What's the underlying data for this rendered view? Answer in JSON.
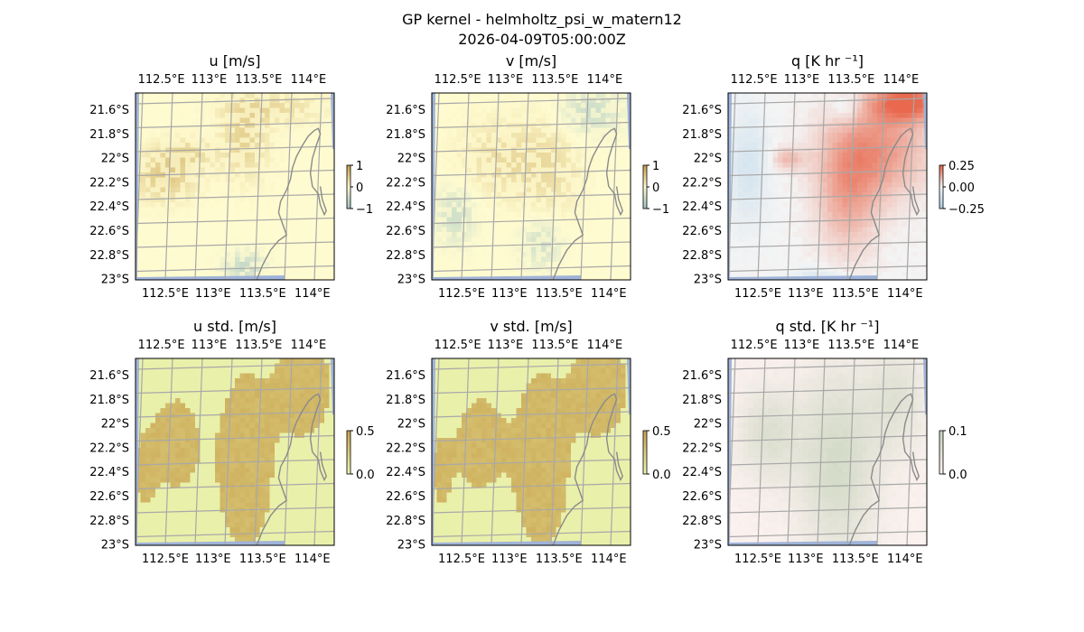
{
  "figure": {
    "title": "GP kernel - helmholtz_psi_w_matern12",
    "subtitle": "2026-04-09T05:00:00Z"
  },
  "colors": {
    "ocean": "#9fb3d9",
    "grid": "#a8a8a8",
    "coast": "#8a8a8a",
    "diverge_pos": "#c8a24a",
    "diverge_mid": "#fffbd0",
    "diverge_neg": "#9fc4c4",
    "std_high": "#c9a44f",
    "std_low": "#ebf5b0",
    "q_pos": "#e8694e",
    "q_mid": "#f4f4f4",
    "q_neg": "#a9cfe8",
    "qstd_low": "#fbf1ef",
    "qstd_high": "#c8d4bc"
  },
  "chart_data": [
    {
      "id": "u",
      "type": "heatmap",
      "title": "u [m/s]",
      "xticks": [
        "112.5°E",
        "113°E",
        "113.5°E",
        "114°E"
      ],
      "yticks": [
        "21.6°S",
        "21.8°S",
        "22°S",
        "22.2°S",
        "22.4°S",
        "22.6°S",
        "22.8°S",
        "23°S"
      ],
      "xlim": [
        112.2,
        114.25
      ],
      "ylim": [
        -23.0,
        -21.45
      ],
      "colorbar": {
        "ticks": [
          "1",
          "0",
          "−1"
        ],
        "range": [
          -1,
          1
        ]
      },
      "cmap": "diverge",
      "field": "u",
      "value_range": [
        -1,
        1
      ]
    },
    {
      "id": "v",
      "type": "heatmap",
      "title": "v [m/s]",
      "xticks": [
        "112.5°E",
        "113°E",
        "113.5°E",
        "114°E"
      ],
      "yticks": [
        "21.6°S",
        "21.8°S",
        "22°S",
        "22.2°S",
        "22.4°S",
        "22.6°S",
        "22.8°S",
        "23°S"
      ],
      "xlim": [
        112.2,
        114.25
      ],
      "ylim": [
        -23.0,
        -21.45
      ],
      "colorbar": {
        "ticks": [
          "1",
          "0",
          "−1"
        ],
        "range": [
          -1,
          1
        ]
      },
      "cmap": "diverge",
      "field": "v",
      "value_range": [
        -1,
        1
      ]
    },
    {
      "id": "q",
      "type": "heatmap",
      "title": "q [K hr ⁻¹]",
      "xticks": [
        "112.5°E",
        "113°E",
        "113.5°E",
        "114°E"
      ],
      "yticks": [
        "21.6°S",
        "21.8°S",
        "22°S",
        "22.2°S",
        "22.4°S",
        "22.6°S",
        "22.8°S",
        "23°S"
      ],
      "xlim": [
        112.2,
        114.25
      ],
      "ylim": [
        -23.0,
        -21.45
      ],
      "colorbar": {
        "ticks": [
          "0.25",
          "0.00",
          "−0.25"
        ],
        "range": [
          -0.3,
          0.3
        ]
      },
      "cmap": "rdbu",
      "field": "q",
      "value_range": [
        -0.3,
        0.3
      ]
    },
    {
      "id": "ustd",
      "type": "heatmap",
      "title": "u std. [m/s]",
      "xticks": [
        "112.5°E",
        "113°E",
        "113.5°E",
        "114°E"
      ],
      "yticks": [
        "21.6°S",
        "21.8°S",
        "22°S",
        "22.2°S",
        "22.4°S",
        "22.6°S",
        "22.8°S",
        "23°S"
      ],
      "xlim": [
        112.2,
        114.25
      ],
      "ylim": [
        -23.0,
        -21.45
      ],
      "colorbar": {
        "ticks": [
          "0.5",
          "0.0"
        ],
        "range": [
          0,
          0.6
        ]
      },
      "cmap": "std",
      "field": "ustd",
      "value_range": [
        0,
        0.6
      ]
    },
    {
      "id": "vstd",
      "type": "heatmap",
      "title": "v std. [m/s]",
      "xticks": [
        "112.5°E",
        "113°E",
        "113.5°E",
        "114°E"
      ],
      "yticks": [
        "21.6°S",
        "21.8°S",
        "22°S",
        "22.2°S",
        "22.4°S",
        "22.6°S",
        "22.8°S",
        "23°S"
      ],
      "xlim": [
        112.2,
        114.25
      ],
      "ylim": [
        -23.0,
        -21.45
      ],
      "colorbar": {
        "ticks": [
          "0.5",
          "0.0"
        ],
        "range": [
          0,
          0.6
        ]
      },
      "cmap": "std",
      "field": "vstd",
      "value_range": [
        0,
        0.6
      ]
    },
    {
      "id": "qstd",
      "type": "heatmap",
      "title": "q std. [K hr ⁻¹]",
      "xticks": [
        "112.5°E",
        "113°E",
        "113.5°E",
        "114°E"
      ],
      "yticks": [
        "21.6°S",
        "21.8°S",
        "22°S",
        "22.2°S",
        "22.4°S",
        "22.6°S",
        "22.8°S",
        "23°S"
      ],
      "xlim": [
        112.2,
        114.25
      ],
      "ylim": [
        -23.0,
        -21.45
      ],
      "colorbar": {
        "ticks": [
          "0.1",
          "0.0"
        ],
        "range": [
          0,
          0.12
        ]
      },
      "cmap": "qstd",
      "field": "qstd",
      "value_range": [
        0,
        0.12
      ]
    }
  ]
}
